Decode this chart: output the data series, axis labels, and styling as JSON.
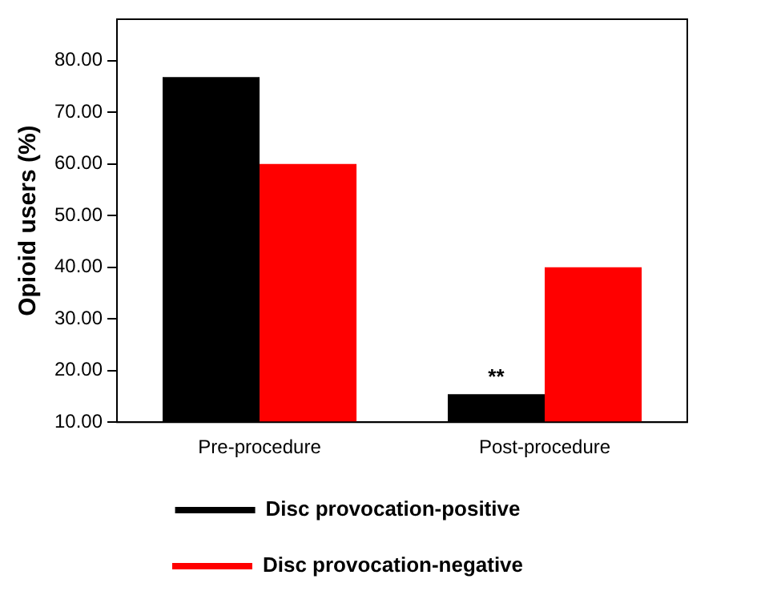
{
  "chart_data": {
    "type": "bar",
    "ylabel": "Opioid users (%)",
    "categories": [
      "Pre-procedure",
      "Post-procedure"
    ],
    "series": [
      {
        "name": "Disc provocation-positive",
        "color": "#000000",
        "values": [
          76.8,
          15.4
        ]
      },
      {
        "name": "Disc provocation-negative",
        "color": "#ff0000",
        "values": [
          60.0,
          40.0
        ]
      }
    ],
    "ylim": [
      10,
      88
    ],
    "yticks": [
      {
        "value": 10,
        "label": "10.00"
      },
      {
        "value": 20,
        "label": "20.00"
      },
      {
        "value": 30,
        "label": "30.00"
      },
      {
        "value": 40,
        "label": "40.00"
      },
      {
        "value": 50,
        "label": "50.00"
      },
      {
        "value": 60,
        "label": "60.00"
      },
      {
        "value": 70,
        "label": "70.00"
      },
      {
        "value": 80,
        "label": "80.00"
      }
    ],
    "annotations": [
      {
        "text": "**",
        "x": "Post-procedure",
        "y": 15.4
      }
    ],
    "grid": false,
    "legend": "bottom"
  }
}
